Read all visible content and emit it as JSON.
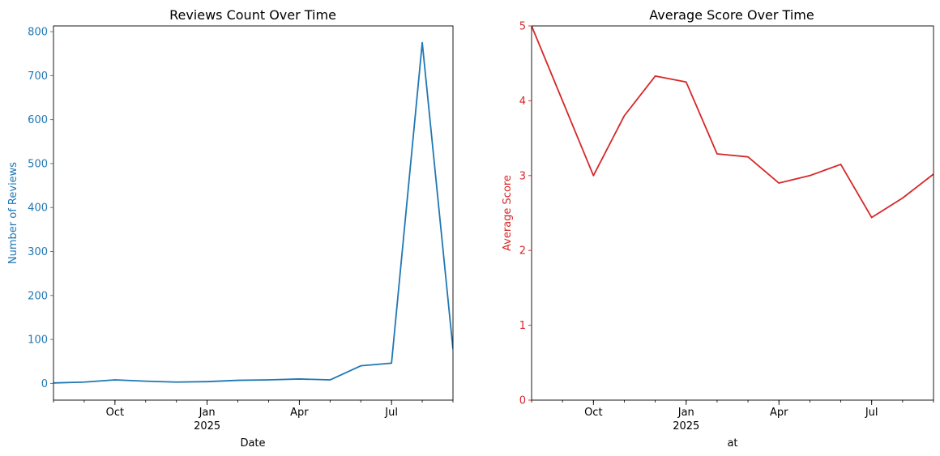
{
  "chart_data": [
    {
      "type": "line",
      "title": "Reviews Count Over Time",
      "xlabel": "Date",
      "ylabel": "Number of Reviews",
      "color": "#1f77b4",
      "x": [
        "2024-08",
        "2024-09",
        "2024-10",
        "2024-11",
        "2024-12",
        "2025-01",
        "2025-02",
        "2025-03",
        "2025-04",
        "2025-05",
        "2025-06",
        "2025-07",
        "2025-08",
        "2025-09"
      ],
      "series": [
        {
          "values": [
            1,
            3,
            8,
            5,
            3,
            4,
            7,
            8,
            10,
            8,
            40,
            46,
            775,
            78
          ]
        }
      ],
      "xticks": [
        {
          "x": "2024-10",
          "label": "Oct",
          "sublabel": ""
        },
        {
          "x": "2025-01",
          "label": "Jan",
          "sublabel": "2025"
        },
        {
          "x": "2025-04",
          "label": "Apr",
          "sublabel": ""
        },
        {
          "x": "2025-07",
          "label": "Jul",
          "sublabel": ""
        }
      ],
      "yticks": [
        0,
        100,
        200,
        300,
        400,
        500,
        600,
        700,
        800
      ],
      "xlim": [
        "2024-08",
        "2025-09"
      ],
      "ylim": [
        -38,
        813
      ],
      "grid": false
    },
    {
      "type": "line",
      "title": "Average Score Over Time",
      "xlabel": "at",
      "ylabel": "Average Score",
      "color": "#d62728",
      "x": [
        "2024-08",
        "2024-09",
        "2024-10",
        "2024-11",
        "2024-12",
        "2025-01",
        "2025-02",
        "2025-03",
        "2025-04",
        "2025-05",
        "2025-06",
        "2025-07",
        "2025-08",
        "2025-09"
      ],
      "series": [
        {
          "values": [
            5.0,
            4.0,
            3.0,
            3.8,
            4.33,
            4.25,
            3.29,
            3.25,
            2.9,
            3.0,
            3.15,
            2.44,
            2.7,
            3.02
          ]
        }
      ],
      "xticks": [
        {
          "x": "2024-10",
          "label": "Oct",
          "sublabel": ""
        },
        {
          "x": "2025-01",
          "label": "Jan",
          "sublabel": "2025"
        },
        {
          "x": "2025-04",
          "label": "Apr",
          "sublabel": ""
        },
        {
          "x": "2025-07",
          "label": "Jul",
          "sublabel": ""
        }
      ],
      "yticks": [
        0,
        1,
        2,
        3,
        4,
        5
      ],
      "xlim": [
        "2024-08",
        "2025-09"
      ],
      "ylim": [
        0,
        5
      ],
      "grid": false
    }
  ]
}
